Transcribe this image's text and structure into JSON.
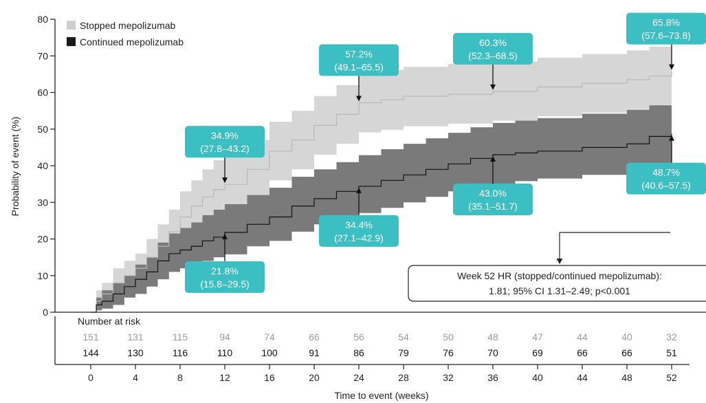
{
  "chart_data": {
    "type": "line",
    "xlabel": "Time to event (weeks)",
    "ylabel": "Probability of event (%)",
    "xlim": [
      0,
      52
    ],
    "ylim": [
      0,
      80
    ],
    "x_ticks": [
      0,
      4,
      8,
      12,
      16,
      20,
      24,
      28,
      32,
      36,
      40,
      44,
      48,
      52
    ],
    "y_ticks": [
      0,
      10,
      20,
      30,
      40,
      50,
      60,
      70,
      80
    ],
    "grid": false,
    "legend_position": "top-left",
    "colors": {
      "stopped_line": "#b8b8b8",
      "stopped_band": "#d6d6d6",
      "continued_line": "#111111",
      "continued_band": "#7a7a7a",
      "annotation_box": "#3cbfc3",
      "annotation_text": "#ffffff"
    },
    "series": [
      {
        "name": "Stopped mepolizumab",
        "x": [
          0,
          0.5,
          1,
          2,
          3,
          4,
          5,
          6,
          7,
          8,
          9,
          10,
          11,
          12,
          14,
          16,
          18,
          20,
          22,
          24,
          26,
          28,
          32,
          36,
          40,
          44,
          48,
          50,
          52
        ],
        "y": [
          0,
          3,
          5,
          8,
          10,
          12,
          15,
          18,
          22,
          26,
          29,
          31.5,
          33.5,
          34.9,
          39,
          44,
          47,
          51,
          54,
          57.2,
          58,
          59,
          59.5,
          60.3,
          61.5,
          62.5,
          63.5,
          64.5,
          65.8
        ],
        "lower": [
          0,
          1,
          3,
          5,
          6,
          8,
          10,
          13,
          16,
          20,
          23,
          25,
          26.5,
          27.8,
          31.5,
          36,
          39,
          43,
          46,
          49.1,
          49.8,
          50.8,
          51.5,
          52.3,
          53.5,
          54.5,
          55.5,
          56.5,
          57.6
        ],
        "upper": [
          0,
          6,
          8,
          12,
          14,
          16,
          20,
          24,
          28,
          33,
          36,
          39,
          41.5,
          43.2,
          47,
          52,
          55,
          59,
          62,
          65.5,
          66.2,
          67,
          67.8,
          68.5,
          69.5,
          70.5,
          71.5,
          72.5,
          73.8
        ]
      },
      {
        "name": "Continued mepolizumab",
        "x": [
          0,
          0.5,
          1,
          2,
          3,
          4,
          5,
          6,
          7,
          8,
          9,
          10,
          11,
          12,
          14,
          16,
          18,
          20,
          22,
          24,
          26,
          28,
          30,
          32,
          34,
          36,
          38,
          40,
          44,
          48,
          50,
          52
        ],
        "y": [
          0,
          2,
          3,
          5,
          7,
          9,
          11,
          14,
          16,
          17,
          18,
          19.5,
          20.5,
          21.8,
          24,
          26,
          29,
          31,
          33,
          34.4,
          36,
          37.5,
          39,
          40.5,
          42,
          43,
          43.5,
          44,
          45,
          46,
          48,
          48.7
        ],
        "lower": [
          0,
          0.5,
          1,
          2,
          4,
          5,
          7,
          9,
          11,
          12,
          13,
          14,
          15,
          15.8,
          18,
          19.5,
          22,
          24,
          25.5,
          27.1,
          28.5,
          30,
          31.5,
          33,
          34.2,
          35.1,
          35.8,
          36.5,
          37.5,
          38.5,
          39.8,
          40.6
        ],
        "upper": [
          0,
          4,
          6,
          8,
          10,
          13,
          15,
          19,
          21.5,
          23,
          24.5,
          26.5,
          28,
          29.5,
          32,
          34,
          37,
          39,
          41,
          42.9,
          44.5,
          46,
          47.5,
          49,
          50.5,
          51.7,
          52.3,
          53,
          54.2,
          55.3,
          56.5,
          57.5
        ]
      }
    ],
    "annotations": [
      {
        "line1": "34.9%",
        "line2": "(27.8–43.2)",
        "week": 12,
        "value": 34.9,
        "arrow": "down"
      },
      {
        "line1": "57.2%",
        "line2": "(49.1–65.5)",
        "week": 24,
        "value": 57.2,
        "arrow": "down"
      },
      {
        "line1": "60.3%",
        "line2": "(52.3–68.5)",
        "week": 36,
        "value": 60.3,
        "arrow": "down"
      },
      {
        "line1": "65.8%",
        "line2": "(57.6–73.8)",
        "week": 52,
        "value": 65.8,
        "arrow": "down"
      },
      {
        "line1": "21.8%",
        "line2": "(15.8–29.5)",
        "week": 12,
        "value": 21.8,
        "arrow": "up"
      },
      {
        "line1": "34.4%",
        "line2": "(27.1–42.9)",
        "week": 24,
        "value": 34.4,
        "arrow": "up"
      },
      {
        "line1": "43.0%",
        "line2": "(35.1–51.7)",
        "week": 36,
        "value": 43.0,
        "arrow": "up"
      },
      {
        "line1": "48.7%",
        "line2": "(40.6–57.5)",
        "week": 52,
        "value": 48.7,
        "arrow": "up"
      }
    ],
    "hr_box": {
      "line1": "Week 52 HR (stopped/continued mepolizumab):",
      "line2": "1.81; 95% CI 1.31–2.49; p<0.001"
    },
    "risk_table": {
      "title": "Number at risk",
      "weeks": [
        0,
        4,
        8,
        12,
        16,
        20,
        24,
        28,
        32,
        36,
        40,
        44,
        48,
        52
      ],
      "rows": [
        {
          "series": "Stopped mepolizumab",
          "values": [
            "151",
            "131",
            "115",
            "94",
            "74",
            "66",
            "56",
            "54",
            "50",
            "48",
            "47",
            "44",
            "40",
            "32"
          ]
        },
        {
          "series": "Continued mepolizumab",
          "values": [
            "144",
            "130",
            "116",
            "110",
            "100",
            "91",
            "86",
            "79",
            "76",
            "70",
            "69",
            "66",
            "66",
            "51"
          ]
        }
      ]
    }
  }
}
